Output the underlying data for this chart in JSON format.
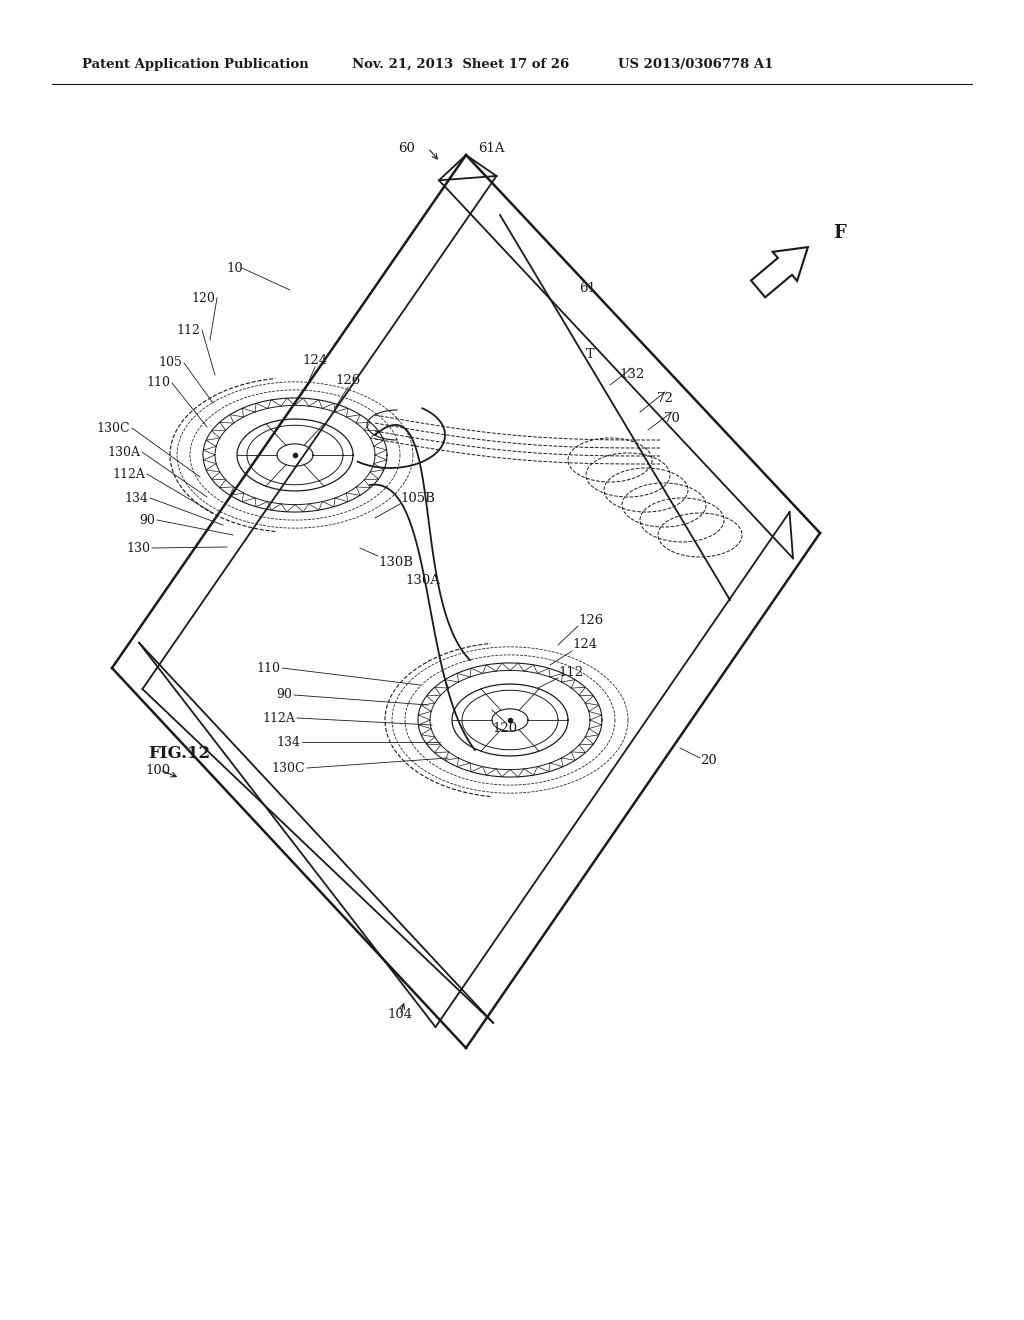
{
  "bg_color": "#ffffff",
  "header_left": "Patent Application Publication",
  "header_mid": "Nov. 21, 2013  Sheet 17 of 26",
  "header_right": "US 2013/0306778 A1",
  "fig_label": "FIG.12",
  "direction_label": "F"
}
